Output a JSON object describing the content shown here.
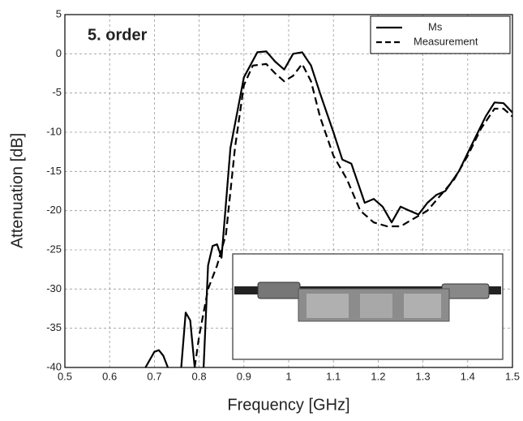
{
  "chart_data": {
    "type": "line",
    "annotation": "5. order",
    "x_label": "Frequency [GHz]",
    "y_label": "Attenuation [dB]",
    "xlim": [
      0.5,
      1.5
    ],
    "ylim": [
      -40,
      5
    ],
    "xticks": [
      0.5,
      0.6,
      0.7,
      0.8,
      0.9,
      1,
      1.1,
      1.2,
      1.3,
      1.4,
      1.5
    ],
    "yticks": [
      5,
      0,
      -5,
      -10,
      -15,
      -20,
      -25,
      -30,
      -35,
      -40
    ],
    "grid": true,
    "legend": "upper right",
    "series": [
      {
        "name": "Ms",
        "color": "#000000",
        "dash": "solid",
        "x": [
          0.68,
          0.7,
          0.71,
          0.72,
          0.73,
          0.74,
          0.76,
          0.77,
          0.78,
          0.79,
          0.8,
          0.81,
          0.82,
          0.83,
          0.84,
          0.85,
          0.87,
          0.9,
          0.93,
          0.95,
          0.97,
          0.99,
          1.01,
          1.03,
          1.05,
          1.07,
          1.1,
          1.12,
          1.14,
          1.17,
          1.19,
          1.21,
          1.23,
          1.25,
          1.27,
          1.29,
          1.31,
          1.33,
          1.35,
          1.38,
          1.41,
          1.44,
          1.46,
          1.48,
          1.5
        ],
        "values": [
          -40,
          -38,
          -37.8,
          -38.5,
          -40,
          null,
          -40,
          -33,
          -34,
          -40,
          null,
          -40,
          -27,
          -24.5,
          -24.3,
          -26,
          -12,
          -3,
          0.2,
          0.3,
          -1,
          -2,
          0,
          0.2,
          -1.5,
          -5,
          -10,
          -13.5,
          -14,
          -19,
          -18.5,
          -19.5,
          -21.5,
          -19.5,
          -20,
          -20.5,
          -19,
          -18,
          -17.5,
          -15,
          -11.5,
          -8,
          -6.2,
          -6.3,
          -7.5
        ]
      },
      {
        "name": "Measurement",
        "color": "#000000",
        "dash": "dashed",
        "x": [
          0.79,
          0.8,
          0.82,
          0.84,
          0.86,
          0.88,
          0.9,
          0.92,
          0.95,
          0.97,
          0.99,
          1.01,
          1.03,
          1.05,
          1.07,
          1.1,
          1.13,
          1.16,
          1.19,
          1.22,
          1.25,
          1.28,
          1.31,
          1.34,
          1.37,
          1.4,
          1.43,
          1.46,
          1.48,
          1.5
        ],
        "values": [
          -40,
          -36,
          -30,
          -27,
          -23,
          -12,
          -4,
          -1.5,
          -1.3,
          -2.5,
          -3.5,
          -2.8,
          -1.3,
          -3.5,
          -8,
          -13,
          -16,
          -20,
          -21.5,
          -22,
          -22,
          -21,
          -20,
          -18,
          -16,
          -13,
          -9.5,
          -7,
          -7,
          -8
        ]
      }
    ]
  }
}
